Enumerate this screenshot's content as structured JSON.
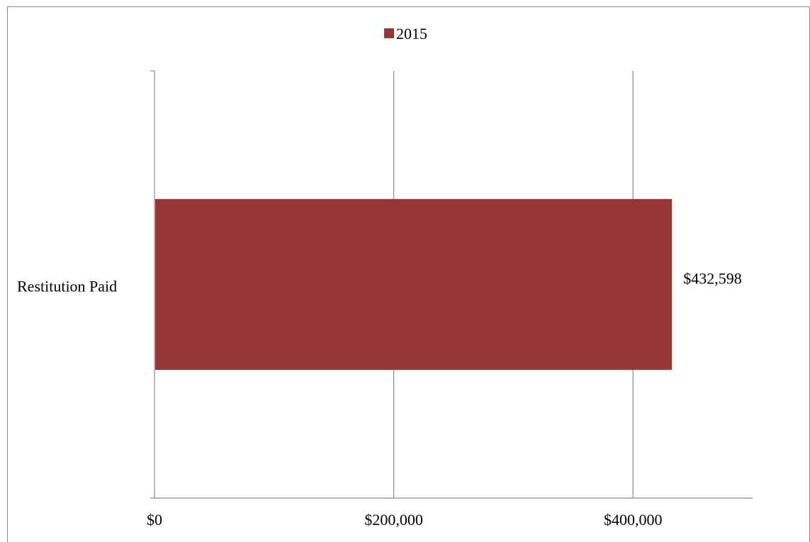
{
  "chart_data": {
    "type": "bar",
    "orientation": "horizontal",
    "categories": [
      "Restitution Paid"
    ],
    "series": [
      {
        "name": "2015",
        "values": [
          432598
        ],
        "color": "#973735"
      }
    ],
    "data_labels": [
      "$432,598"
    ],
    "xlim": [
      0,
      500000
    ],
    "x_ticks": [
      0,
      200000,
      400000
    ],
    "x_tick_labels": [
      "$0",
      "$200,000",
      "$400,000"
    ],
    "grid": true,
    "legend_position": "top-center"
  }
}
